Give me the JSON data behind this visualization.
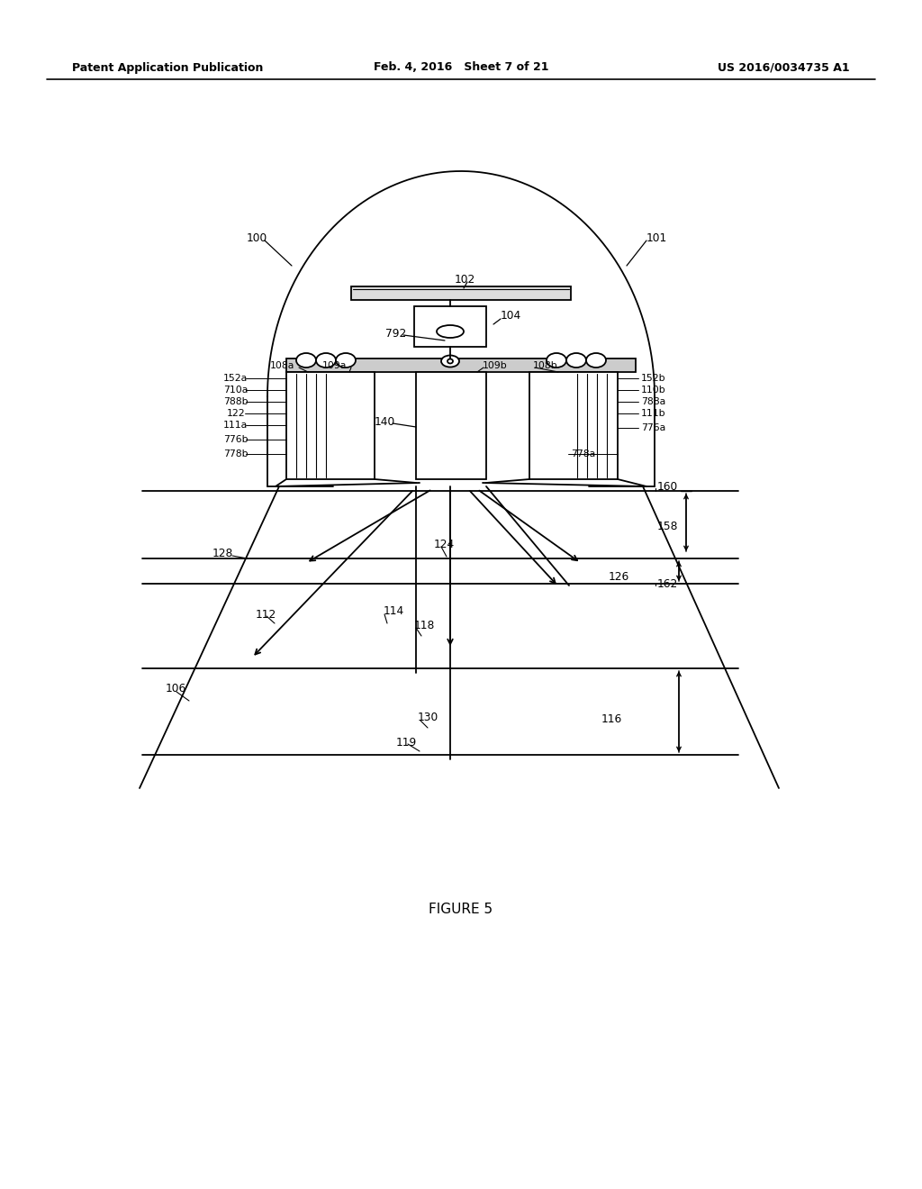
{
  "header_left": "Patent Application Publication",
  "header_mid": "Feb. 4, 2016   Sheet 7 of 21",
  "header_right": "US 2016/0034735 A1",
  "figure_label": "FIGURE 5",
  "bg": "#ffffff",
  "lc": "#000000",
  "fig_w": 10.24,
  "fig_h": 13.2,
  "dpi": 100
}
